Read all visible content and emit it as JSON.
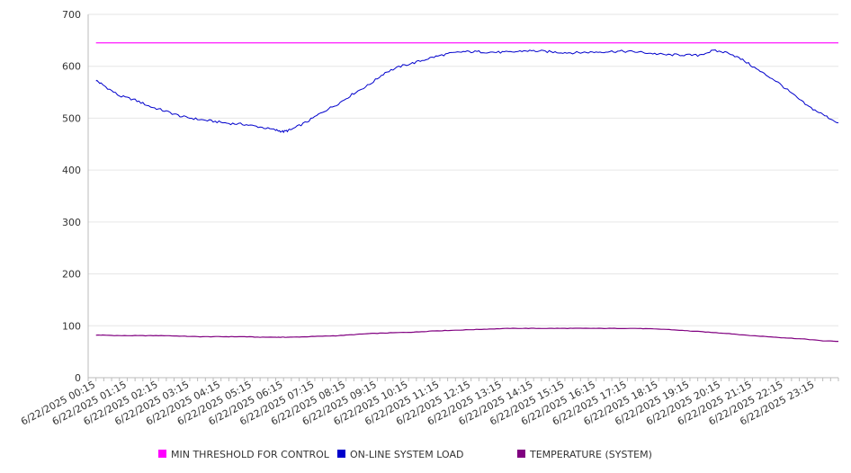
{
  "chart_data": {
    "type": "line",
    "ylim": [
      0,
      700
    ],
    "y_ticks": [
      0,
      100,
      200,
      300,
      400,
      500,
      600,
      700
    ],
    "grid": true,
    "legend_position": "bottom",
    "x_tick_labels": [
      "6/22/2025 00:15",
      "6/22/2025 01:15",
      "6/22/2025 02:15",
      "6/22/2025 03:15",
      "6/22/2025 04:15",
      "6/22/2025 05:15",
      "6/22/2025 06:15",
      "6/22/2025 07:15",
      "6/22/2025 08:15",
      "6/22/2025 09:15",
      "6/22/2025 10:15",
      "6/22/2025 11:15",
      "6/22/2025 12:15",
      "6/22/2025 13:15",
      "6/22/2025 14:15",
      "6/22/2025 15:15",
      "6/22/2025 16:15",
      "6/22/2025 17:15",
      "6/22/2025 18:15",
      "6/22/2025 19:15",
      "6/22/2025 20:15",
      "6/22/2025 21:15",
      "6/22/2025 22:15",
      "6/22/2025 23:15"
    ],
    "x_hours": [
      0.25,
      0.5,
      1,
      1.5,
      2,
      2.5,
      3,
      3.5,
      4,
      4.5,
      5,
      5.5,
      6,
      6.25,
      6.5,
      7,
      7.5,
      8,
      8.5,
      9,
      9.5,
      10,
      10.5,
      11,
      11.5,
      12,
      12.5,
      13,
      13.5,
      14,
      14.5,
      15,
      15.5,
      16,
      16.5,
      17,
      17.5,
      18,
      18.5,
      19,
      19.5,
      20,
      20.5,
      21,
      21.5,
      22,
      22.5,
      23,
      23.5,
      24
    ],
    "series": [
      {
        "name": "MIN THRESHOLD FOR CONTROL",
        "color": "#ff00ff",
        "values": [
          645,
          645,
          645,
          645,
          645,
          645,
          645,
          645,
          645,
          645,
          645,
          645,
          645,
          645,
          645,
          645,
          645,
          645,
          645,
          645,
          645,
          645,
          645,
          645,
          645,
          645,
          645,
          645,
          645,
          645,
          645,
          645,
          645,
          645,
          645,
          645,
          645,
          645,
          645,
          645,
          645,
          645,
          645,
          645,
          645,
          645,
          645,
          645,
          645,
          645
        ]
      },
      {
        "name": "ON-LINE SYSTEM LOAD",
        "color": "#0000cc",
        "values": [
          573,
          563,
          543,
          535,
          522,
          513,
          503,
          498,
          494,
          490,
          488,
          483,
          477,
          474,
          478,
          493,
          512,
          528,
          548,
          565,
          588,
          600,
          608,
          617,
          624,
          628,
          628,
          627,
          627,
          630,
          629,
          627,
          626,
          627,
          628,
          629,
          628,
          625,
          622,
          622,
          621,
          630,
          626,
          610,
          590,
          572,
          548,
          524,
          507,
          491
        ]
      }
    ],
    "temperature_series": {
      "name": "TEMPERATURE (SYSTEM)",
      "color": "#800080",
      "values": [
        82,
        82,
        81,
        81,
        81,
        81,
        80,
        79,
        79,
        79,
        79,
        78,
        78,
        78,
        78,
        79,
        80,
        81,
        83,
        85,
        86,
        87,
        88,
        90,
        91,
        92,
        93,
        94,
        95,
        95,
        95,
        95,
        95,
        95,
        95,
        95,
        95,
        94,
        93,
        91,
        89,
        87,
        85,
        82,
        80,
        78,
        76,
        74,
        71,
        70
      ]
    }
  }
}
